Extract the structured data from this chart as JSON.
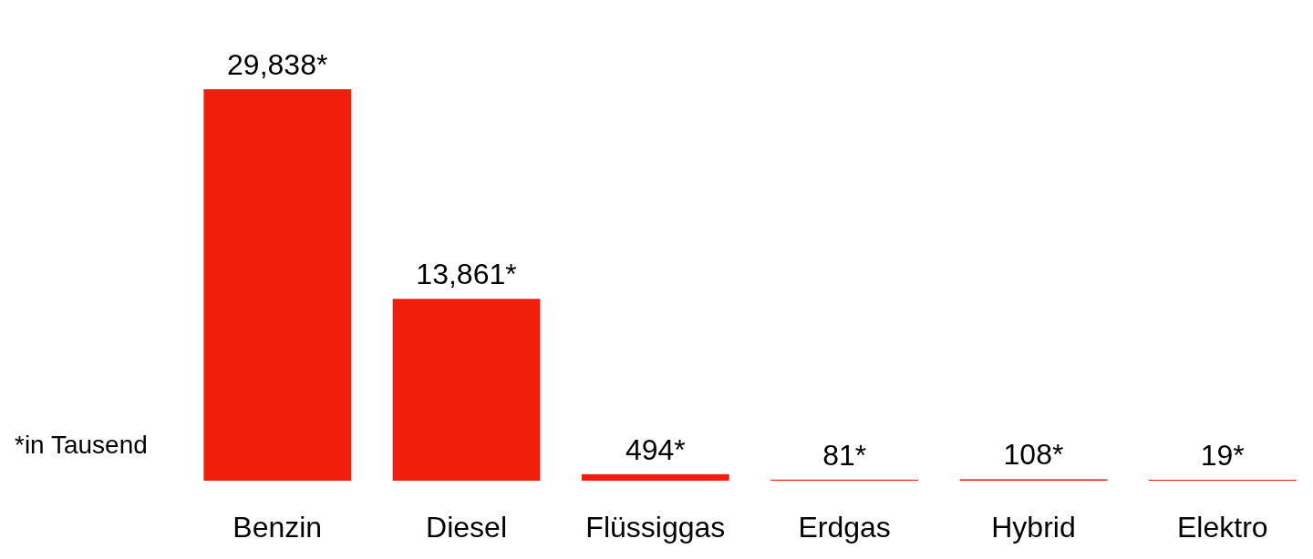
{
  "chart_data": {
    "type": "bar",
    "categories": [
      "Benzin",
      "Diesel",
      "Flüssiggas",
      "Erdgas",
      "Hybrid",
      "Elektro"
    ],
    "values": [
      29838,
      13861,
      494,
      81,
      108,
      19
    ],
    "value_labels": [
      "29,838*",
      "13,861*",
      "494*",
      "81*",
      "108*",
      "19*"
    ],
    "color": "#f21e0c",
    "annotations": [
      "*in Tausend"
    ]
  }
}
